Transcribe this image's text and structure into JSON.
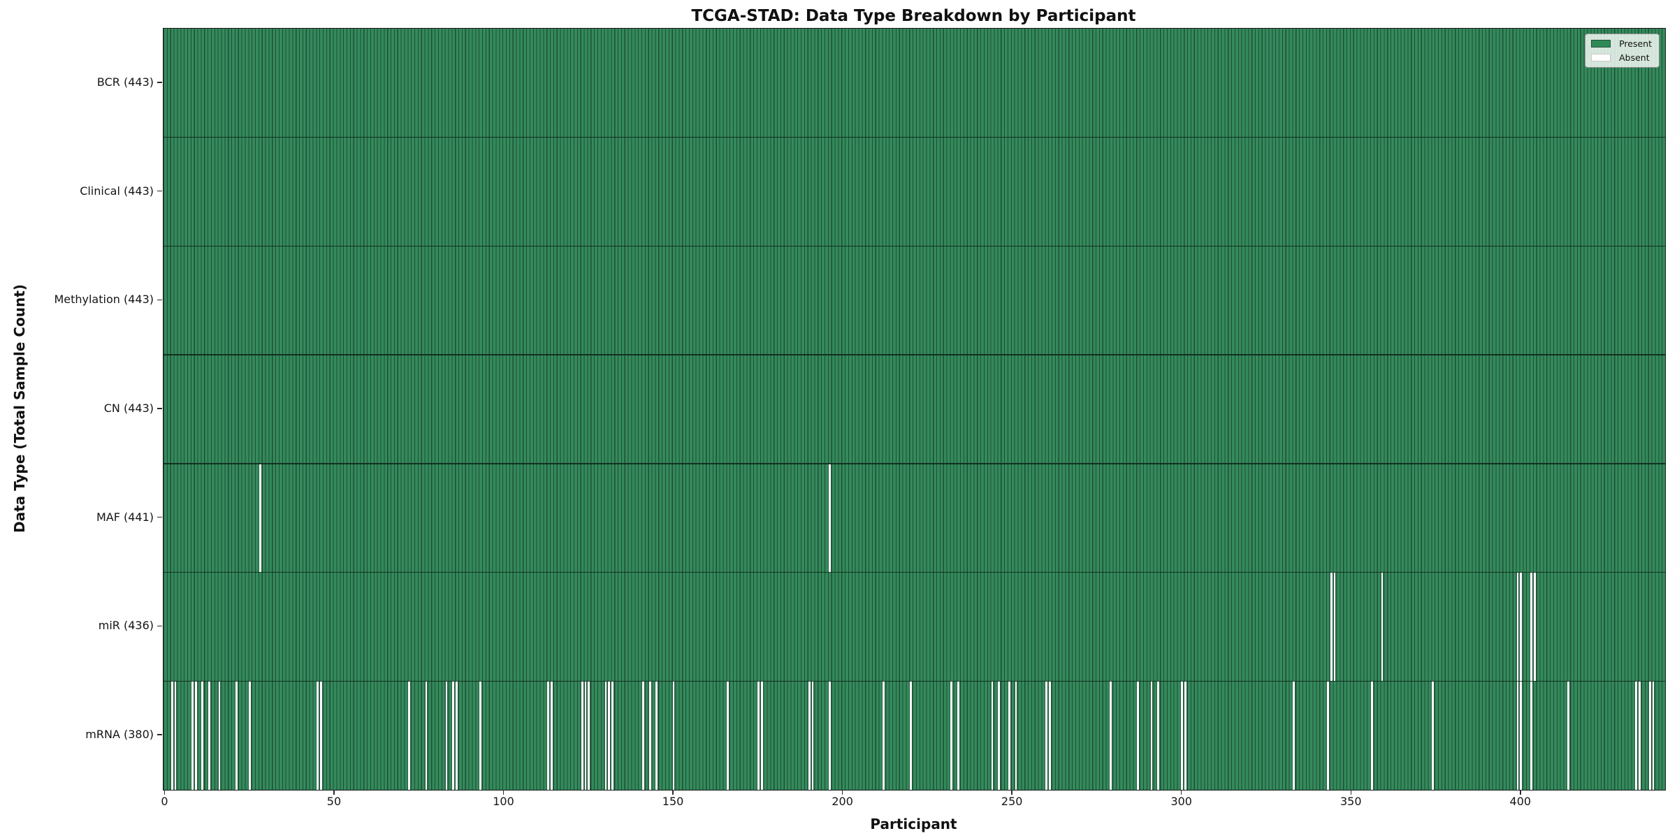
{
  "chart_data": {
    "type": "heatmap",
    "title": "TCGA-STAD: Data Type Breakdown by Participant",
    "xlabel": "Participant",
    "ylabel": "Data Type (Total Sample Count)",
    "n_participants": 443,
    "x_ticks": [
      0,
      50,
      100,
      150,
      200,
      250,
      300,
      350,
      400
    ],
    "legend_position": "upper right",
    "legend_entries": [
      {
        "label": "Present",
        "color": "#2e8b57"
      },
      {
        "label": "Absent",
        "color": "#ffffff"
      }
    ],
    "rows": [
      {
        "name": "BCR",
        "total": 443,
        "tick_label": "BCR (443)",
        "absent_participants": []
      },
      {
        "name": "Clinical",
        "total": 443,
        "tick_label": "Clinical (443)",
        "absent_participants": []
      },
      {
        "name": "Methylation",
        "total": 443,
        "tick_label": "Methylation (443)",
        "absent_participants": []
      },
      {
        "name": "CN",
        "total": 443,
        "tick_label": "CN (443)",
        "absent_participants": []
      },
      {
        "name": "MAF",
        "total": 441,
        "tick_label": "MAF (441)",
        "absent_participants": [
          28,
          196
        ]
      },
      {
        "name": "miR",
        "total": 436,
        "tick_label": "miR (436)",
        "absent_participants": [
          344,
          345,
          359,
          399,
          400,
          403,
          404
        ]
      },
      {
        "name": "mRNA",
        "total": 380,
        "tick_label": "mRNA (380)",
        "absent_participants": [
          2,
          3,
          8,
          9,
          11,
          13,
          16,
          21,
          25,
          45,
          46,
          72,
          77,
          83,
          85,
          86,
          93,
          113,
          114,
          123,
          124,
          125,
          130,
          131,
          132,
          141,
          143,
          145,
          150,
          166,
          175,
          176,
          190,
          191,
          196,
          212,
          220,
          232,
          234,
          244,
          246,
          249,
          251,
          260,
          261,
          279,
          287,
          291,
          293,
          300,
          301,
          333,
          343,
          356,
          374,
          399,
          400,
          403,
          414,
          434,
          435,
          438,
          439
        ]
      }
    ]
  },
  "colors": {
    "present_fill": "#348a5c",
    "bar_edge": "#1e4e35",
    "absent_fill": "#ffffff",
    "row_separator": "#14291d",
    "axis_spine": "#1a1a1a",
    "background": "#ffffff"
  }
}
